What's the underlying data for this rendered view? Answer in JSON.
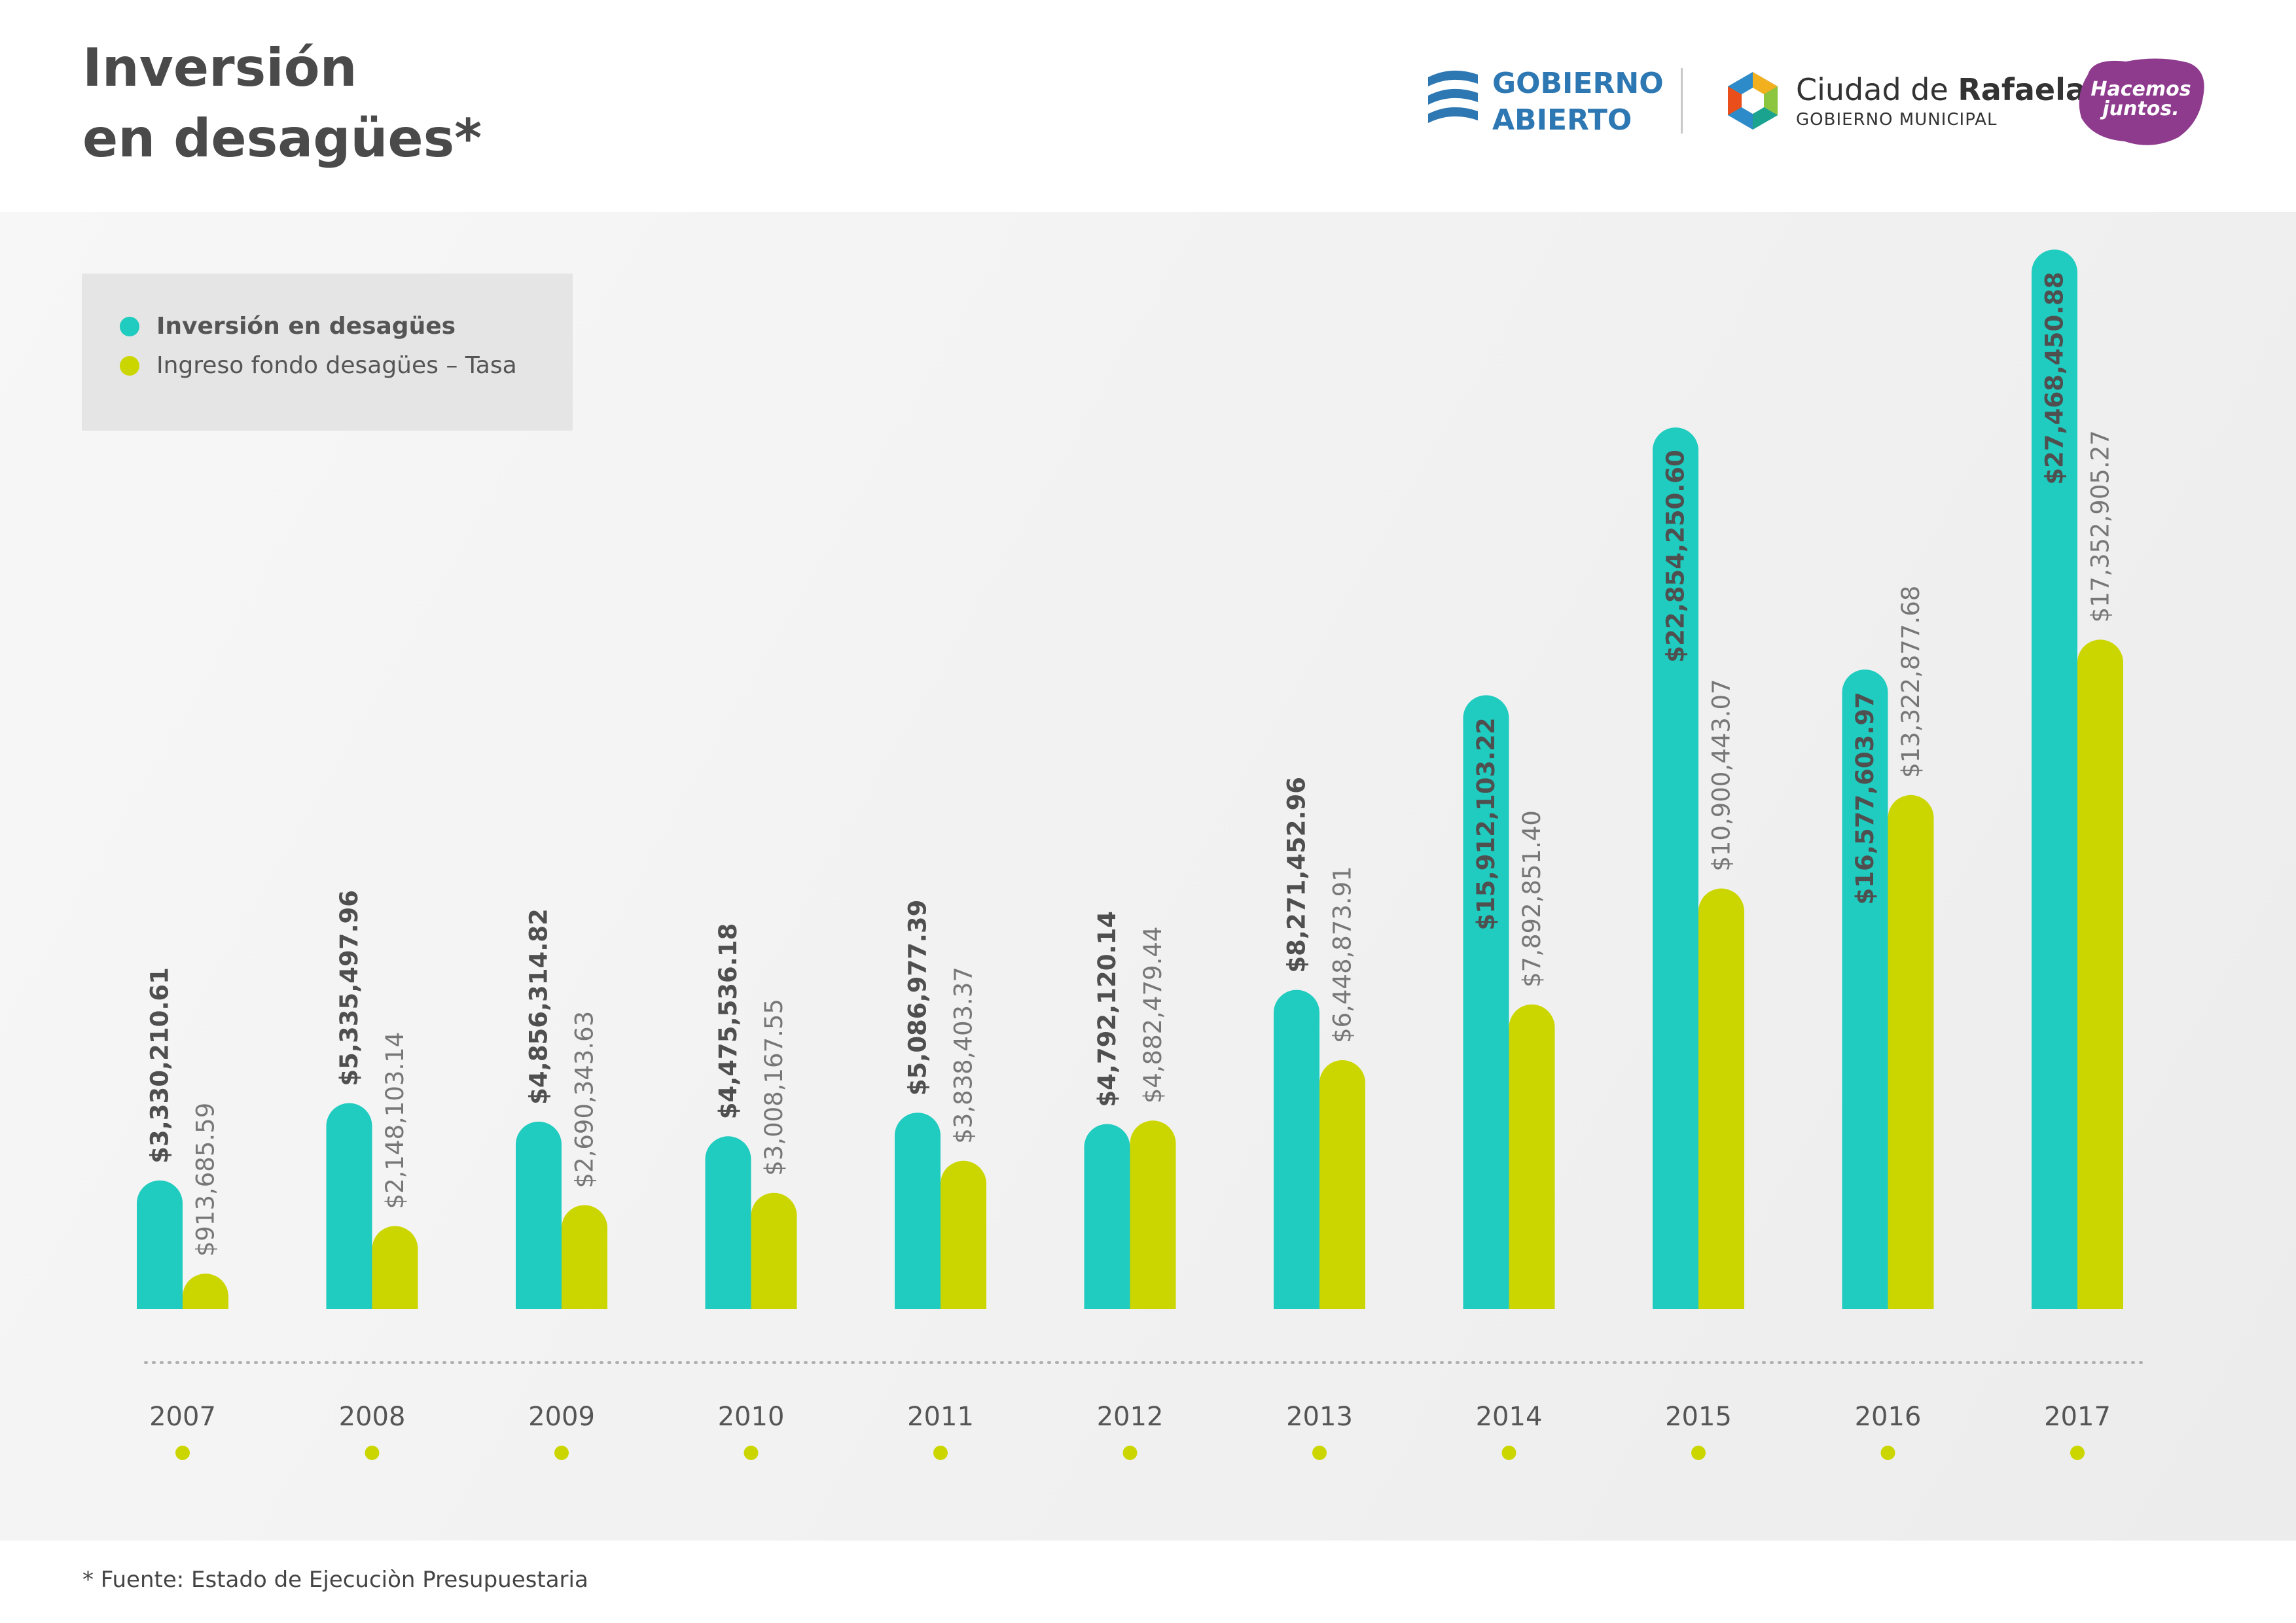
{
  "header": {
    "title_line1": "Inversión",
    "title_line2": "en desagües*",
    "logos": {
      "gobierno_abierto": [
        "GOBIERNO",
        "ABIERTO"
      ],
      "ciudad_prefix": "Ciudad de ",
      "ciudad_name": "Rafaela",
      "ciudad_sub": "GOBIERNO MUNICIPAL",
      "hacemos": [
        "Hacemos",
        "juntos."
      ]
    }
  },
  "footer": {
    "source": "* Fuente: Estado de Ejecuciòn Presupuestaria"
  },
  "colors": {
    "investment": "#20cbbf",
    "income": "#cbd600",
    "text": "#555555",
    "axis_dots": "#cbd600"
  },
  "chart_data": {
    "type": "bar",
    "title": "Inversión en desagües*",
    "categories": [
      "2007",
      "2008",
      "2009",
      "2010",
      "2011",
      "2012",
      "2013",
      "2014",
      "2015",
      "2016",
      "2017"
    ],
    "legend_position": "top-left",
    "grid": false,
    "ylim": [
      0,
      28000000
    ],
    "series": [
      {
        "name": "Inversión en desagües",
        "values": [
          3330210.61,
          5335497.96,
          4856314.82,
          4475536.18,
          5086977.39,
          4792120.14,
          8271452.96,
          15912103.22,
          22854250.6,
          16577603.97,
          27468450.88
        ],
        "labels": [
          "$3,330,210.61",
          "$5,335,497.96",
          "$4,856,314.82",
          "$4,475,536.18",
          "$5,086,977.39",
          "$4,792,120.14",
          "$8,271,452.96",
          "$15,912,103.22",
          "$22,854,250.60",
          "$16,577,603.97",
          "$27,468,450.88"
        ]
      },
      {
        "name": "Ingreso fondo desagües – Tasa",
        "values": [
          913685.59,
          2148103.14,
          2690343.63,
          3008167.55,
          3838403.37,
          4882479.44,
          6448873.91,
          7892851.4,
          10900443.07,
          13322877.68,
          17352905.27
        ],
        "labels": [
          "$913,685.59",
          "$2,148,103.14",
          "$2,690,343.63",
          "$3,008,167.55",
          "$3,838,403.37",
          "$4,882,479.44",
          "$6,448,873.91",
          "$7,892,851.40",
          "$10,900,443.07",
          "$13,322,877.68",
          "$17,352,905.27"
        ]
      }
    ]
  }
}
